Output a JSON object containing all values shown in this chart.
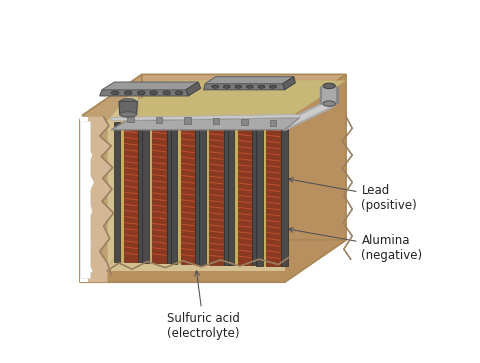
{
  "bg_color": "#FFFFFF",
  "case_face_color": "#D4B896",
  "case_top_color": "#C8A87A",
  "case_left_color": "#C0A070",
  "case_right_color": "#B89060",
  "case_bottom_color": "#B89060",
  "case_edge_color": "#A88858",
  "interior_bg_color": "#D4B896",
  "sep_color": "#D4C080",
  "neg_plate_color": "#4A4A4A",
  "pos_plate_color": "#8B3A22",
  "pos_hatch_color": "#CC5533",
  "terminal_gray": "#7A7A7A",
  "terminal_dark": "#555555",
  "terminal_light": "#AAAAAA",
  "bus_bar_color": "#AAAAAA",
  "bus_bar_light": "#CCCCCC",
  "cap_top_color": "#888888",
  "cap_side_color": "#666666",
  "zigzag_color": "#9B8060",
  "white_strip_color": "#FFFFFF",
  "label_color": "#222222",
  "label_font_size": 8.5,
  "arrow_color": "#555555",
  "labels": {
    "lead": "Lead\n(positive)",
    "alumina": "Alumina\n(negative)",
    "sulfuric": "Sulfuric acid\n(electrolyte)"
  }
}
